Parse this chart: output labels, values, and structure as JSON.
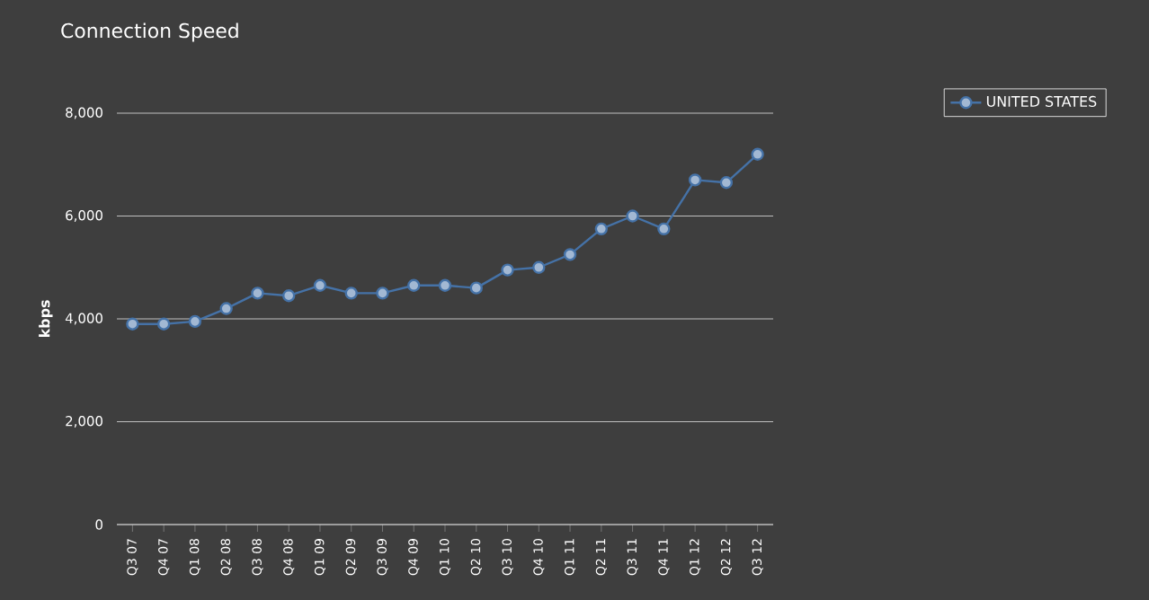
{
  "chart_data": {
    "type": "line",
    "title": "Connection Speed",
    "ylabel": "kbps",
    "categories": [
      "Q3 07",
      "Q4 07",
      "Q1 08",
      "Q2 08",
      "Q3 08",
      "Q4 08",
      "Q1 09",
      "Q2 09",
      "Q3 09",
      "Q4 09",
      "Q1 10",
      "Q2 10",
      "Q3 10",
      "Q4 10",
      "Q1 11",
      "Q2 11",
      "Q3 11",
      "Q4 11",
      "Q1 12",
      "Q2 12",
      "Q3 12"
    ],
    "series": [
      {
        "name": "UNITED STATES",
        "color": "#4572a7",
        "values": [
          3900,
          3900,
          3950,
          4200,
          4500,
          4450,
          4650,
          4500,
          4500,
          4650,
          4650,
          4600,
          4950,
          5000,
          5250,
          5750,
          6000,
          5750,
          6700,
          6650,
          7200
        ]
      }
    ],
    "ylim": [
      0,
      8000
    ],
    "yticks": [
      {
        "value": 0,
        "label": "0"
      },
      {
        "value": 2000,
        "label": "2,000"
      },
      {
        "value": 4000,
        "label": "4,000"
      },
      {
        "value": 6000,
        "label": "6,000"
      },
      {
        "value": 8000,
        "label": "8,000"
      }
    ],
    "grid": "y",
    "legend": "top right",
    "marker": "circle",
    "line_style": "solid"
  }
}
